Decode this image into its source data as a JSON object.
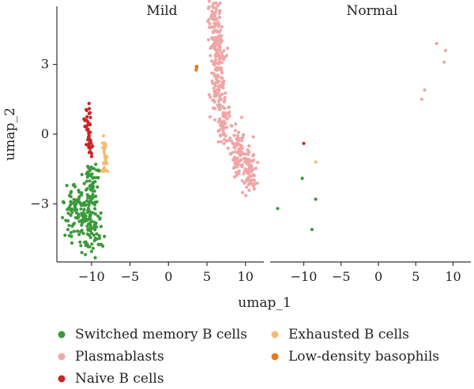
{
  "chart_data": {
    "type": "scatter",
    "xlabel": "umap_1",
    "ylabel": "umap_2",
    "xlim": [
      -14.5,
      12.8
    ],
    "ylim": [
      -5.5,
      5.5
    ],
    "xticks": [
      -10,
      -5,
      0,
      5,
      10
    ],
    "yticks": [
      -3,
      0,
      3
    ],
    "grid": false,
    "legend_position": "bottom",
    "colors": {
      "Switched memory B cells": "#3a9a3a",
      "Plasmablasts": "#f0a6a6",
      "Naive B cells": "#cc2424",
      "Exhausted B cells": "#f5bd70",
      "Low-density basophils": "#e87a1c"
    },
    "legend": [
      "Switched memory B cells",
      "Plasmablasts",
      "Naive B cells",
      "Exhausted B cells",
      "Low-density basophils"
    ],
    "panels": [
      {
        "title": "Mild",
        "clusters": [
          {
            "name": "Plasmablasts",
            "n": 430,
            "centers": [
              [
                6.0,
                4.9
              ],
              [
                6.5,
                3.5
              ],
              [
                6.4,
                2.0
              ],
              [
                7.3,
                0.5
              ],
              [
                9.0,
                -0.8
              ],
              [
                10.5,
                -1.6
              ]
            ],
            "spread": [
              0.8,
              0.55
            ]
          },
          {
            "name": "Switched memory B cells",
            "n": 240,
            "centers": [
              [
                -10.0,
                -2.0
              ],
              [
                -10.3,
                -3.3
              ],
              [
                -10.0,
                -4.3
              ],
              [
                -12.3,
                -3.2
              ]
            ],
            "spread": [
              1.2,
              0.6
            ]
          },
          {
            "name": "Naive B cells",
            "n": 48,
            "centers": [
              [
                -10.5,
                0.5
              ],
              [
                -10.2,
                -0.5
              ]
            ],
            "spread": [
              0.4,
              0.4
            ]
          },
          {
            "name": "Exhausted B cells",
            "n": 28,
            "centers": [
              [
                -8.4,
                -0.6
              ],
              [
                -8.2,
                -1.2
              ]
            ],
            "spread": [
              0.3,
              0.35
            ]
          },
          {
            "name": "Low-density basophils",
            "n": 4,
            "centers": [
              [
                3.6,
                2.8
              ]
            ],
            "spread": [
              0.15,
              0.12
            ]
          }
        ]
      },
      {
        "title": "Normal",
        "points": [
          {
            "name": "Plasmablasts",
            "x": 7.8,
            "y": 3.9
          },
          {
            "name": "Plasmablasts",
            "x": 9.0,
            "y": 3.6
          },
          {
            "name": "Plasmablasts",
            "x": 8.8,
            "y": 3.1
          },
          {
            "name": "Plasmablasts",
            "x": 6.2,
            "y": 1.9
          },
          {
            "name": "Plasmablasts",
            "x": 5.8,
            "y": 1.5
          },
          {
            "name": "Naive B cells",
            "x": -10.0,
            "y": -0.4
          },
          {
            "name": "Exhausted B cells",
            "x": -8.4,
            "y": -1.2
          },
          {
            "name": "Switched memory B cells",
            "x": -10.2,
            "y": -1.9
          },
          {
            "name": "Switched memory B cells",
            "x": -13.5,
            "y": -3.2
          },
          {
            "name": "Switched memory B cells",
            "x": -8.4,
            "y": -2.8
          },
          {
            "name": "Switched memory B cells",
            "x": -8.9,
            "y": -4.1
          }
        ]
      }
    ]
  }
}
